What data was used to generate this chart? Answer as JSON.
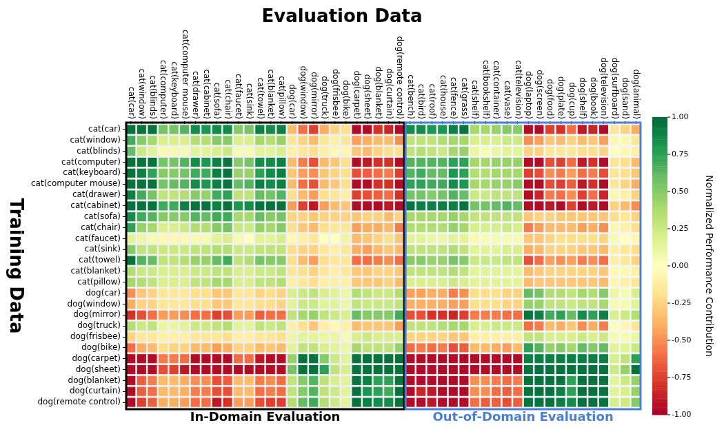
{
  "chart_data": {
    "type": "heatmap",
    "xlabel": "Evaluation Data",
    "ylabel": "Training Data",
    "clabel": "Normalized Performance Contribution",
    "categories": [
      "cat(car)",
      "cat(window)",
      "cat(blinds)",
      "cat(computer)",
      "cat(keyboard)",
      "cat(computer mouse)",
      "cat(drawer)",
      "cat(cabinet)",
      "cat(sofa)",
      "cat(chair)",
      "cat(faucet)",
      "cat(sink)",
      "cat(towel)",
      "cat(blanket)",
      "cat(pillow)",
      "dog(car)",
      "dog(window)",
      "dog(mirror)",
      "dog(truck)",
      "dog(frisbee)",
      "dog(bike)",
      "dog(carpet)",
      "dog(sheet)",
      "dog(blanket)",
      "dog(curtain)",
      "dog(remote control)",
      "cat(bench)",
      "cat(bird)",
      "cat(roof)",
      "cat(house)",
      "cat(fence)",
      "cat(grass)",
      "cat(shelf)",
      "cat(bookshelf)",
      "cat(container)",
      "cat(vase)",
      "cat(television)",
      "dog(laptop)",
      "dog(screen)",
      "dog(food)",
      "dog(plate)",
      "dog(cup)",
      "dog(shelf)",
      "dog(book)",
      "dog(television)",
      "dog(surfboard)",
      "dog(sand)",
      "dog(animal)"
    ],
    "y_categories": [
      "cat(car)",
      "cat(window)",
      "cat(blinds)",
      "cat(computer)",
      "cat(keyboard)",
      "cat(computer mouse)",
      "cat(drawer)",
      "cat(cabinet)",
      "cat(sofa)",
      "cat(chair)",
      "cat(faucet)",
      "cat(sink)",
      "cat(towel)",
      "cat(blanket)",
      "cat(pillow)",
      "dog(car)",
      "dog(window)",
      "dog(mirror)",
      "dog(truck)",
      "dog(frisbee)",
      "dog(bike)",
      "dog(carpet)",
      "dog(sheet)",
      "dog(blanket)",
      "dog(curtain)",
      "dog(remote control)"
    ],
    "cells": [
      [
        0.95,
        0.95,
        0.95,
        0.55,
        0.55,
        0.65,
        0.85,
        0.8,
        0.85,
        0.85,
        0.5,
        0.55,
        0.9,
        0.85,
        0.9,
        -0.35,
        -0.6,
        -0.75,
        -0.4,
        -0.25,
        -0.2,
        -0.95,
        -0.95,
        -0.8,
        -0.85,
        -0.95,
        0.85,
        0.85,
        0.8,
        0.8,
        0.9,
        0.95,
        0.4,
        0.4,
        0.45,
        0.5,
        0.5,
        -0.95,
        -0.95,
        -0.75,
        -0.8,
        -0.6,
        -0.9,
        -0.85,
        -0.95,
        -0.15,
        -0.25,
        -0.4
      ],
      [
        0.7,
        0.5,
        0.4,
        0.2,
        0.2,
        0.2,
        0.35,
        0.35,
        0.5,
        0.5,
        0.2,
        0.2,
        0.4,
        0.35,
        0.45,
        -0.15,
        -0.25,
        -0.35,
        -0.15,
        -0.1,
        -0.15,
        -0.45,
        -0.4,
        -0.35,
        -0.35,
        -0.5,
        0.3,
        0.3,
        0.3,
        0.35,
        0.4,
        0.4,
        0.2,
        0.2,
        0.2,
        0.25,
        0.25,
        -0.5,
        -0.45,
        -0.3,
        -0.35,
        -0.25,
        -0.35,
        -0.3,
        -0.45,
        -0.05,
        -0.05,
        -0.15
      ],
      [
        0.6,
        0.25,
        0.15,
        0.05,
        0.05,
        0.05,
        0.15,
        0.15,
        0.2,
        0.25,
        0.05,
        0.05,
        0.15,
        0.15,
        0.2,
        -0.1,
        -0.15,
        -0.2,
        -0.1,
        -0.05,
        -0.05,
        -0.3,
        -0.35,
        -0.25,
        -0.2,
        -0.2,
        0.3,
        0.35,
        0.3,
        0.25,
        0.4,
        0.45,
        0.1,
        0.05,
        0.1,
        0.15,
        0.15,
        -0.25,
        -0.25,
        -0.15,
        -0.15,
        -0.15,
        -0.2,
        -0.2,
        -0.25,
        0,
        -0.05,
        -0.1
      ],
      [
        0.95,
        0.95,
        0.95,
        0.55,
        0.55,
        0.65,
        0.85,
        0.8,
        0.9,
        0.95,
        0.5,
        0.55,
        0.85,
        0.85,
        0.9,
        -0.35,
        -0.55,
        -0.7,
        -0.35,
        -0.3,
        -0.2,
        -0.95,
        -0.9,
        -0.8,
        -0.8,
        -0.95,
        0.65,
        0.65,
        0.65,
        0.65,
        0.75,
        0.75,
        0.4,
        0.4,
        0.45,
        0.45,
        0.45,
        -0.95,
        -0.95,
        -0.7,
        -0.75,
        -0.6,
        -0.9,
        -0.8,
        -0.95,
        -0.15,
        -0.2,
        -0.35
      ],
      [
        0.95,
        0.9,
        0.75,
        0.5,
        0.5,
        0.55,
        0.7,
        0.7,
        0.9,
        0.95,
        0.45,
        0.45,
        0.75,
        0.85,
        0.9,
        -0.3,
        -0.45,
        -0.5,
        -0.3,
        -0.25,
        -0.2,
        -0.7,
        -0.65,
        -0.6,
        -0.55,
        -0.75,
        0.65,
        0.7,
        0.6,
        0.6,
        0.8,
        0.75,
        0.35,
        0.35,
        0.4,
        0.4,
        0.4,
        -0.75,
        -0.7,
        -0.5,
        -0.55,
        -0.45,
        -0.6,
        -0.55,
        -0.7,
        -0.15,
        -0.2,
        -0.3
      ],
      [
        0.95,
        0.95,
        0.95,
        0.55,
        0.6,
        0.65,
        0.85,
        0.8,
        0.9,
        0.95,
        0.6,
        0.65,
        0.9,
        0.85,
        0.9,
        -0.35,
        -0.6,
        -0.7,
        -0.35,
        -0.3,
        -0.2,
        -0.95,
        -0.95,
        -0.8,
        -0.8,
        -0.95,
        0.75,
        0.75,
        0.7,
        0.7,
        0.85,
        0.8,
        0.4,
        0.4,
        0.45,
        0.45,
        0.5,
        -0.95,
        -0.95,
        -0.7,
        -0.75,
        -0.65,
        -0.9,
        -0.8,
        -0.95,
        -0.15,
        -0.25,
        -0.4
      ],
      [
        0.9,
        0.7,
        0.55,
        0.3,
        0.3,
        0.35,
        0.5,
        0.45,
        0.7,
        0.75,
        0.3,
        0.3,
        0.6,
        0.55,
        0.65,
        -0.2,
        -0.35,
        -0.45,
        -0.2,
        -0.15,
        -0.1,
        -0.75,
        -0.7,
        -0.65,
        -0.6,
        -0.8,
        0.55,
        0.55,
        0.5,
        0.55,
        0.65,
        0.6,
        0.25,
        0.25,
        0.3,
        0.3,
        0.3,
        -0.95,
        -0.85,
        -0.55,
        -0.6,
        -0.5,
        -0.75,
        -0.6,
        -0.85,
        -0.05,
        -0.1,
        -0.25
      ],
      [
        0.95,
        0.95,
        0.95,
        0.7,
        0.7,
        0.9,
        0.95,
        0.95,
        0.9,
        0.95,
        0.8,
        0.85,
        0.95,
        0.95,
        0.95,
        -0.45,
        -0.75,
        -0.9,
        -0.45,
        -0.35,
        -0.3,
        -0.95,
        -0.95,
        -0.95,
        -0.9,
        -0.95,
        0.95,
        0.9,
        0.9,
        0.9,
        0.9,
        0.95,
        0.55,
        0.55,
        0.6,
        0.65,
        0.6,
        -0.95,
        -0.95,
        -0.9,
        -0.95,
        -0.75,
        -0.95,
        -0.9,
        -0.95,
        -0.25,
        -0.35,
        -0.5
      ],
      [
        0.85,
        0.7,
        0.65,
        0.5,
        0.5,
        0.5,
        0.65,
        0.6,
        0.7,
        0.7,
        0.4,
        0.4,
        0.6,
        0.5,
        0.55,
        -0.25,
        -0.25,
        -0.3,
        -0.25,
        -0.25,
        -0.25,
        -0.3,
        -0.25,
        -0.25,
        -0.35,
        -0.25,
        0.4,
        0.4,
        0.4,
        0.4,
        0.45,
        0.4,
        0.3,
        0.3,
        0.3,
        0.3,
        0.3,
        -0.3,
        -0.25,
        -0.25,
        -0.3,
        -0.3,
        -0.3,
        -0.3,
        -0.3,
        -0.2,
        -0.15,
        -0.25
      ],
      [
        0.75,
        0.45,
        0.4,
        0.2,
        0.2,
        0.25,
        0.35,
        0.35,
        0.5,
        0.55,
        0.25,
        0.25,
        0.45,
        0.4,
        0.5,
        -0.2,
        -0.3,
        -0.35,
        -0.2,
        -0.15,
        -0.15,
        -0.45,
        -0.4,
        -0.4,
        -0.35,
        -0.55,
        0.35,
        0.35,
        0.35,
        0.35,
        0.45,
        0.4,
        0.2,
        0.2,
        0.2,
        0.25,
        0.2,
        -0.55,
        -0.45,
        -0.35,
        -0.35,
        -0.35,
        -0.45,
        -0.4,
        -0.5,
        -0.05,
        -0.1,
        -0.2
      ],
      [
        0.15,
        0.1,
        0.05,
        -0.05,
        -0.05,
        -0.05,
        0.05,
        0.05,
        0.15,
        0.2,
        0.05,
        0,
        0.15,
        0.15,
        0.2,
        -0.05,
        -0.1,
        -0.15,
        0,
        0,
        0.1,
        -0.35,
        -0.3,
        -0.25,
        -0.2,
        -0.3,
        0.15,
        0.15,
        0.1,
        0.1,
        0.15,
        0.15,
        0.05,
        0.05,
        0.05,
        0.05,
        0.05,
        -0.3,
        -0.3,
        -0.25,
        -0.2,
        -0.2,
        -0.2,
        -0.2,
        -0.25,
        0.05,
        0,
        -0.05
      ],
      [
        0.5,
        0.3,
        0.3,
        0.25,
        0.25,
        0.25,
        0.3,
        0.3,
        0.35,
        0.35,
        0.25,
        0.25,
        0.3,
        0.3,
        0.3,
        -0.2,
        -0.25,
        -0.25,
        -0.15,
        -0.1,
        -0.15,
        -0.4,
        -0.45,
        -0.35,
        -0.3,
        -0.35,
        0.3,
        0.3,
        0.3,
        0.3,
        0.35,
        0.3,
        0.15,
        0.15,
        0.15,
        0.2,
        0.2,
        -0.4,
        -0.35,
        -0.25,
        -0.25,
        -0.25,
        -0.3,
        -0.3,
        -0.35,
        -0.1,
        -0.15,
        -0.2
      ],
      [
        0.95,
        0.65,
        0.6,
        0.3,
        0.3,
        0.35,
        0.45,
        0.45,
        0.6,
        0.7,
        0.3,
        0.35,
        0.55,
        0.5,
        0.5,
        -0.2,
        -0.35,
        -0.45,
        -0.2,
        -0.15,
        -0.15,
        -0.6,
        -0.6,
        -0.55,
        -0.5,
        -0.6,
        0.5,
        0.5,
        0.45,
        0.45,
        0.55,
        0.5,
        0.25,
        0.25,
        0.25,
        0.3,
        0.3,
        -0.7,
        -0.6,
        -0.45,
        -0.5,
        -0.45,
        -0.55,
        -0.5,
        -0.6,
        -0.1,
        -0.15,
        -0.25
      ],
      [
        0.35,
        0.25,
        0.25,
        0.2,
        0.2,
        0.2,
        0.25,
        0.25,
        0.3,
        0.3,
        0.2,
        0.2,
        0.25,
        0.25,
        0.3,
        -0.15,
        -0.2,
        -0.25,
        -0.15,
        -0.1,
        -0.15,
        -0.3,
        -0.3,
        -0.25,
        -0.25,
        -0.3,
        0.3,
        0.3,
        0.3,
        0.3,
        0.35,
        0.3,
        0.15,
        0.15,
        0.15,
        0.15,
        0.15,
        -0.35,
        -0.3,
        -0.25,
        -0.25,
        -0.25,
        -0.25,
        -0.25,
        -0.3,
        -0.05,
        -0.05,
        -0.1
      ],
      [
        0.4,
        0.35,
        0.3,
        0.2,
        0.2,
        0.2,
        0.3,
        0.3,
        0.4,
        0.4,
        0.2,
        0.2,
        0.3,
        0.3,
        0.35,
        -0.1,
        -0.15,
        -0.2,
        -0.1,
        -0.1,
        -0.1,
        -0.3,
        -0.3,
        -0.3,
        -0.25,
        -0.35,
        0.2,
        0.2,
        0.2,
        0.2,
        0.25,
        0.2,
        0.15,
        0.15,
        0.15,
        0.15,
        0.15,
        -0.35,
        -0.3,
        -0.3,
        -0.3,
        -0.3,
        -0.3,
        -0.3,
        -0.35,
        -0.05,
        -0.1,
        -0.15
      ],
      [
        -0.5,
        -0.3,
        -0.25,
        -0.15,
        -0.15,
        -0.15,
        -0.2,
        -0.2,
        -0.3,
        -0.3,
        -0.15,
        -0.15,
        -0.25,
        -0.2,
        -0.25,
        0.2,
        0.25,
        0.3,
        0.2,
        0.15,
        0.1,
        0.35,
        0.3,
        0.25,
        0.25,
        0.35,
        -0.45,
        -0.45,
        -0.4,
        -0.4,
        -0.55,
        -0.5,
        -0.2,
        -0.2,
        -0.2,
        -0.25,
        -0.25,
        0.6,
        0.55,
        0.35,
        0.35,
        0.3,
        0.4,
        0.35,
        0.5,
        0.1,
        0.05,
        0.2
      ],
      [
        -0.4,
        -0.25,
        -0.25,
        -0.15,
        -0.15,
        -0.15,
        -0.2,
        -0.2,
        -0.3,
        -0.3,
        -0.15,
        -0.15,
        -0.2,
        -0.2,
        -0.25,
        0.15,
        0.25,
        0.25,
        0.15,
        0.15,
        0.1,
        0.3,
        0.25,
        0.25,
        0.25,
        0.3,
        -0.4,
        -0.4,
        -0.4,
        -0.4,
        -0.45,
        -0.45,
        -0.2,
        -0.2,
        -0.2,
        -0.25,
        -0.25,
        0.45,
        0.45,
        0.3,
        0.3,
        0.25,
        0.3,
        0.3,
        0.4,
        0.05,
        0.05,
        0.15
      ],
      [
        -0.8,
        -0.7,
        -0.6,
        -0.45,
        -0.45,
        -0.5,
        -0.6,
        -0.6,
        -0.75,
        -0.7,
        -0.45,
        -0.45,
        -0.65,
        -0.6,
        -0.6,
        0.3,
        0.4,
        0.45,
        0.3,
        0.25,
        0.2,
        0.6,
        0.5,
        0.5,
        0.5,
        0.7,
        -0.7,
        -0.7,
        -0.8,
        -0.8,
        -0.85,
        -0.75,
        -0.55,
        -0.55,
        -0.55,
        -0.6,
        -0.6,
        0.95,
        0.9,
        0.7,
        0.75,
        0.6,
        0.85,
        0.75,
        0.9,
        0.2,
        0.25,
        0.35
      ],
      [
        0.35,
        0.25,
        0.3,
        0.1,
        0.1,
        0.15,
        0.25,
        0.25,
        0.3,
        0.35,
        0.15,
        0.15,
        0.3,
        0.25,
        0.3,
        -0.1,
        -0.2,
        -0.3,
        -0.1,
        -0.05,
        -0.1,
        -0.35,
        -0.3,
        -0.3,
        -0.3,
        -0.45,
        0.3,
        0.3,
        0.3,
        0.35,
        0.4,
        0.4,
        0.2,
        0.2,
        0.25,
        0.25,
        0.25,
        -0.6,
        -0.55,
        -0.35,
        -0.4,
        -0.3,
        -0.5,
        -0.4,
        -0.55,
        0,
        -0.05,
        -0.15
      ],
      [
        -0.25,
        -0.15,
        -0.15,
        -0.1,
        -0.1,
        -0.1,
        -0.15,
        -0.15,
        -0.15,
        -0.2,
        -0.1,
        -0.1,
        -0.15,
        -0.15,
        -0.2,
        0.1,
        0.15,
        0.15,
        0.1,
        0.1,
        0.05,
        0.2,
        0.25,
        0.2,
        0.2,
        0.2,
        -0.25,
        -0.25,
        -0.25,
        -0.25,
        -0.3,
        -0.3,
        -0.1,
        -0.1,
        -0.1,
        -0.1,
        -0.1,
        0.3,
        0.3,
        0.2,
        0.2,
        0.2,
        0.25,
        0.2,
        0.25,
        0.05,
        0.05,
        0.1
      ],
      [
        -0.6,
        -0.4,
        -0.35,
        -0.2,
        -0.25,
        -0.25,
        -0.35,
        -0.35,
        -0.45,
        -0.4,
        -0.25,
        -0.25,
        -0.35,
        -0.3,
        -0.35,
        0.15,
        0.3,
        0.3,
        0.2,
        0.15,
        0.1,
        0.4,
        0.3,
        0.3,
        0.3,
        0.45,
        -0.6,
        -0.55,
        -0.6,
        -0.55,
        -0.7,
        -0.65,
        -0.35,
        -0.35,
        -0.4,
        -0.45,
        -0.35,
        0.75,
        0.65,
        0.45,
        0.5,
        0.4,
        0.6,
        0.5,
        0.6,
        0.15,
        0.15,
        0.25
      ],
      [
        -0.95,
        -0.95,
        -0.95,
        -0.55,
        -0.55,
        -0.6,
        -0.95,
        -0.95,
        -0.95,
        -0.95,
        -0.6,
        -0.6,
        -0.9,
        -0.95,
        -0.95,
        0.45,
        0.95,
        0.95,
        0.5,
        0.25,
        0.15,
        0.95,
        0.95,
        0.95,
        0.95,
        0.95,
        -0.95,
        -0.95,
        -0.95,
        -0.95,
        -0.95,
        -0.95,
        -0.95,
        -0.95,
        -0.95,
        -0.95,
        -0.95,
        0.9,
        0.9,
        0.9,
        0.9,
        0.9,
        0.9,
        0.9,
        0.9,
        0.2,
        0.3,
        0.75
      ],
      [
        -0.95,
        -0.95,
        -0.95,
        -0.7,
        -0.75,
        -0.9,
        -0.95,
        -0.95,
        -0.95,
        -0.95,
        -0.95,
        -0.95,
        -0.95,
        -0.95,
        -0.95,
        0.55,
        0.95,
        0.95,
        0.75,
        0.3,
        0.2,
        0.95,
        0.95,
        0.95,
        0.95,
        0.95,
        -0.95,
        -0.95,
        -0.95,
        -0.95,
        -0.95,
        -0.95,
        -0.95,
        -0.95,
        -0.95,
        -0.95,
        -0.95,
        0.95,
        0.95,
        0.95,
        0.95,
        0.95,
        0.95,
        0.95,
        0.95,
        0.25,
        0.45,
        0.95
      ],
      [
        -0.95,
        -0.65,
        -0.55,
        -0.35,
        -0.35,
        -0.4,
        -0.5,
        -0.5,
        -0.7,
        -0.65,
        -0.35,
        -0.35,
        -0.55,
        -0.5,
        -0.6,
        0.3,
        0.5,
        0.65,
        0.3,
        0.2,
        0.15,
        0.95,
        0.9,
        0.75,
        0.75,
        0.95,
        -0.95,
        -0.95,
        -0.95,
        -0.95,
        -0.95,
        -0.95,
        -0.5,
        -0.5,
        -0.55,
        -0.6,
        -0.55,
        0.95,
        0.95,
        0.95,
        0.95,
        0.75,
        0.95,
        0.95,
        0.95,
        0.15,
        0.25,
        0.45
      ],
      [
        -0.95,
        -0.65,
        -0.6,
        -0.35,
        -0.35,
        -0.4,
        -0.55,
        -0.55,
        -0.7,
        -0.7,
        -0.35,
        -0.35,
        -0.6,
        -0.55,
        -0.6,
        0.3,
        0.5,
        0.65,
        0.3,
        0.25,
        0.15,
        0.95,
        0.8,
        0.75,
        0.7,
        0.95,
        -0.95,
        -0.85,
        -0.9,
        -0.95,
        -0.95,
        -0.95,
        -0.5,
        -0.5,
        -0.6,
        -0.65,
        -0.6,
        0.95,
        0.95,
        0.95,
        0.9,
        0.75,
        0.95,
        0.95,
        0.95,
        0.15,
        0.2,
        0.45
      ],
      [
        -0.95,
        -0.75,
        -0.65,
        -0.4,
        -0.4,
        -0.45,
        -0.6,
        -0.6,
        -0.9,
        -0.8,
        -0.45,
        -0.45,
        -0.7,
        -0.75,
        -0.75,
        0.35,
        0.6,
        0.7,
        0.35,
        0.25,
        0.15,
        0.95,
        0.9,
        0.85,
        0.85,
        0.95,
        -0.95,
        -0.95,
        -0.9,
        -0.95,
        -0.95,
        -0.95,
        -0.6,
        -0.65,
        -0.65,
        -0.7,
        -0.65,
        0.95,
        0.95,
        0.95,
        0.9,
        0.85,
        0.95,
        0.95,
        0.95,
        0.2,
        0.25,
        0.5
      ]
    ],
    "clim": [
      -1,
      1
    ],
    "cticks": [
      {
        "value": 1,
        "label": "1.00"
      },
      {
        "value": 0.75,
        "label": "0.75"
      },
      {
        "value": 0.5,
        "label": "0.50"
      },
      {
        "value": 0.25,
        "label": "0.25"
      },
      {
        "value": 0,
        "label": "0.00"
      },
      {
        "value": -0.25,
        "label": "-0.25"
      },
      {
        "value": -0.5,
        "label": "-0.50"
      },
      {
        "value": -0.75,
        "label": "-0.75"
      },
      {
        "value": -1,
        "label": "-1.00"
      }
    ],
    "bands": [
      {
        "axis": "x",
        "from": "cat(car)",
        "to": "dog(remote control)",
        "label": "In-Domain Evaluation",
        "color": "#000000"
      },
      {
        "axis": "x",
        "from": "cat(bench)",
        "to": "dog(animal)",
        "label": "Out-of-Domain Evaluation",
        "color": "#4a7fd4"
      }
    ]
  }
}
